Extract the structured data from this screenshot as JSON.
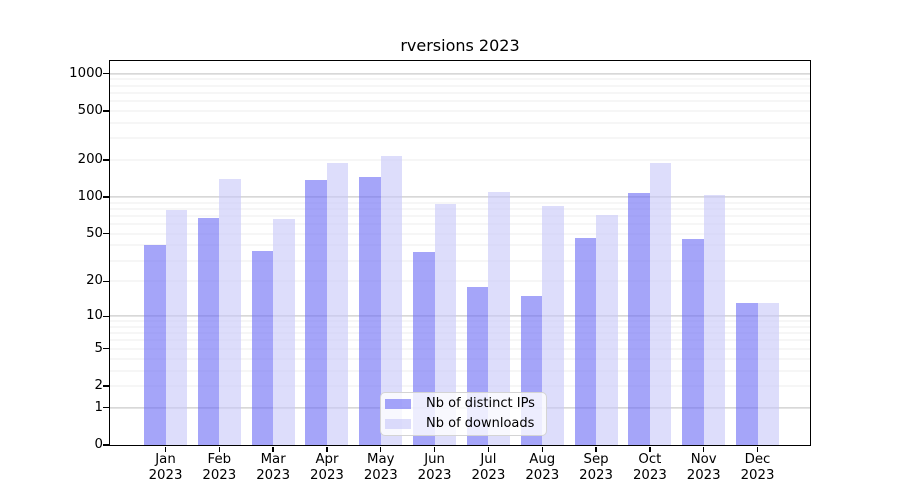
{
  "chart_data": {
    "type": "bar",
    "title": "rversions 2023",
    "categories": [
      "Jan",
      "Feb",
      "Mar",
      "Apr",
      "May",
      "Jun",
      "Jul",
      "Aug",
      "Sep",
      "Oct",
      "Nov",
      "Dec"
    ],
    "category_year": "2023",
    "series": [
      {
        "name": "Nb of distinct IPs",
        "color": "#6e6ef5",
        "alpha": 0.62,
        "values": [
          40,
          68,
          36,
          139,
          147,
          35,
          18,
          15,
          46,
          108,
          45,
          13
        ]
      },
      {
        "name": "Nb of downloads",
        "color": "#c8c8f8",
        "alpha": 0.62,
        "values": [
          78,
          140,
          66,
          188,
          217,
          88,
          109,
          84,
          71,
          190,
          103,
          13
        ]
      }
    ],
    "xlabel": "",
    "ylabel": "",
    "y_axis": {
      "scale": "log1p",
      "ylim": [
        0,
        1270
      ],
      "max_log_units": 3.104,
      "tick_labels": [
        0,
        1,
        2,
        5,
        10,
        20,
        50,
        100,
        200,
        500,
        1000
      ],
      "major_gridlines": [
        1,
        10,
        100,
        1000
      ],
      "minor_gridlines": [
        2,
        3,
        4,
        5,
        6,
        7,
        8,
        9,
        20,
        30,
        40,
        50,
        60,
        70,
        80,
        90,
        200,
        300,
        400,
        500,
        600,
        700,
        800,
        900
      ]
    },
    "grid": true,
    "legend_position": "inside-bottom-center"
  },
  "colors": {
    "major_grid": "#bdbdbd",
    "minor_grid": "#ededed",
    "spine": "#000000",
    "text": "#000000",
    "legend_border": "#d4d4d4",
    "legend_bg": "rgba(255,255,255,0.8)"
  }
}
